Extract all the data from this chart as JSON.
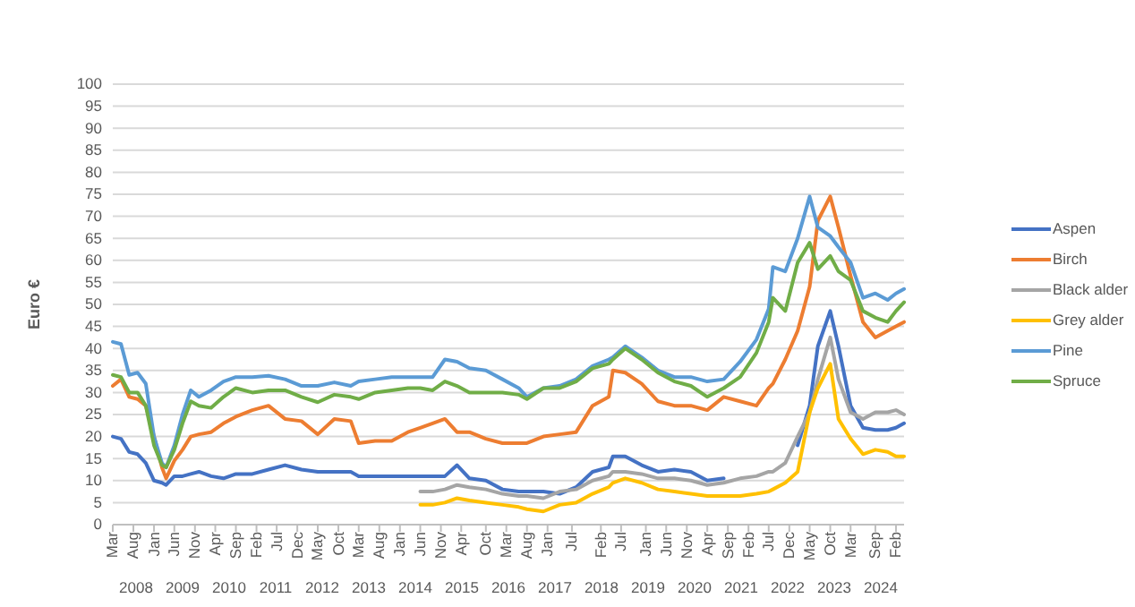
{
  "chart_data": {
    "type": "line",
    "ylabel": "Euro €",
    "x": [
      "2008-03",
      "2008-05",
      "2008-07",
      "2008-09",
      "2008-11",
      "2009-01",
      "2009-03",
      "2009-04",
      "2009-06",
      "2009-08",
      "2009-10",
      "2009-12",
      "2010-03",
      "2010-06",
      "2010-09",
      "2011-01",
      "2011-05",
      "2011-09",
      "2012-01",
      "2012-05",
      "2012-09",
      "2013-01",
      "2013-03",
      "2013-07",
      "2013-11",
      "2014-03",
      "2014-06",
      "2014-09",
      "2014-12",
      "2015-03",
      "2015-06",
      "2015-10",
      "2016-02",
      "2016-06",
      "2016-08",
      "2016-12",
      "2017-04",
      "2017-08",
      "2017-12",
      "2018-04",
      "2018-05",
      "2018-08",
      "2018-12",
      "2019-04",
      "2019-08",
      "2019-12",
      "2020-04",
      "2020-08",
      "2020-12",
      "2021-04",
      "2021-07",
      "2021-08",
      "2021-11",
      "2022-02",
      "2022-05",
      "2022-07",
      "2022-10",
      "2022-12",
      "2023-03",
      "2023-06",
      "2023-09",
      "2023-12",
      "2024-02",
      "2024-04"
    ],
    "series": [
      {
        "name": "Aspen",
        "color": "#4472c4",
        "values": [
          20,
          19.5,
          16.5,
          16,
          14,
          10,
          9.5,
          9,
          11,
          11,
          11.5,
          12,
          11,
          10.5,
          11.5,
          11.5,
          12.5,
          13.5,
          12.5,
          12,
          12,
          12,
          11,
          11,
          11,
          11,
          11,
          11,
          11,
          13.5,
          10.5,
          10,
          8,
          7.5,
          7.5,
          7.5,
          7,
          8.5,
          12,
          13,
          15.5,
          15.5,
          13.5,
          12,
          12.5,
          12,
          10,
          10.5,
          null,
          null,
          null,
          null,
          null,
          18,
          27,
          40.5,
          48.5,
          40.5,
          27,
          22,
          21.5,
          21.5,
          22,
          23
        ]
      },
      {
        "name": "Birch",
        "color": "#ed7d31",
        "values": [
          31.5,
          33,
          29,
          28.5,
          27,
          20,
          13,
          10.5,
          14.5,
          17,
          20,
          20.5,
          21,
          23,
          24.5,
          26,
          27,
          24,
          23.5,
          20.5,
          24,
          23.5,
          18.5,
          19,
          19,
          21,
          22,
          23,
          24,
          21,
          21,
          19.5,
          18.5,
          18.5,
          18.5,
          20,
          20.5,
          21,
          27,
          29,
          35,
          34.5,
          32,
          28,
          27,
          27,
          26,
          29,
          28,
          27,
          31,
          32,
          37.5,
          44,
          54,
          69,
          74.5,
          67.5,
          56.5,
          46,
          42.5,
          44,
          45,
          46
        ]
      },
      {
        "name": "Black alder",
        "color": "#a5a5a5",
        "values": [
          null,
          null,
          null,
          null,
          null,
          null,
          null,
          null,
          null,
          null,
          null,
          null,
          null,
          null,
          null,
          null,
          null,
          null,
          null,
          null,
          null,
          null,
          null,
          null,
          null,
          null,
          7.5,
          7.5,
          8,
          9,
          8.5,
          8,
          7,
          6.5,
          6.5,
          6,
          7.5,
          8,
          10,
          11,
          12,
          12,
          11.5,
          10.5,
          10.5,
          10,
          9,
          9.5,
          10.5,
          11,
          12,
          12,
          14,
          20,
          25.5,
          33,
          42.5,
          33,
          25.5,
          24,
          25.5,
          25.5,
          26,
          25
        ]
      },
      {
        "name": "Grey alder",
        "color": "#ffc000",
        "values": [
          null,
          null,
          null,
          null,
          null,
          null,
          null,
          null,
          null,
          null,
          null,
          null,
          null,
          null,
          null,
          null,
          null,
          null,
          null,
          null,
          null,
          null,
          null,
          null,
          null,
          null,
          4.5,
          4.5,
          5,
          6,
          5.5,
          5,
          4.5,
          4,
          3.5,
          3,
          4.5,
          5,
          7,
          8.5,
          9.5,
          10.5,
          9.5,
          8,
          7.5,
          7,
          6.5,
          6.5,
          6.5,
          7,
          7.5,
          8,
          9.5,
          12,
          25.5,
          31,
          36.5,
          24,
          19.5,
          16,
          17,
          16.5,
          15.5,
          15.5
        ]
      },
      {
        "name": "Pine",
        "color": "#5b9bd5",
        "values": [
          41.5,
          41,
          34,
          34.5,
          32,
          20,
          14,
          13,
          18,
          25,
          30.5,
          29,
          30.5,
          32.5,
          33.5,
          33.5,
          33.8,
          33,
          31.5,
          31.5,
          32.3,
          31.5,
          32.5,
          33,
          33.5,
          33.5,
          33.5,
          33.5,
          37.5,
          37,
          35.5,
          35,
          33,
          31,
          29,
          31,
          31.5,
          33,
          36,
          37.5,
          38,
          40.5,
          38,
          35,
          33.5,
          33.5,
          32.5,
          33,
          37,
          42,
          49,
          58.5,
          57.5,
          65,
          74.5,
          67.5,
          65.5,
          63,
          59.5,
          51.5,
          52.5,
          51,
          52.5,
          53.5
        ]
      },
      {
        "name": "Spruce",
        "color": "#70ad47",
        "values": [
          34,
          33.5,
          30,
          30,
          27,
          18,
          13.5,
          13,
          17,
          23,
          28,
          27,
          26.5,
          29,
          31,
          30,
          30.5,
          30.5,
          29,
          27.8,
          29.5,
          29,
          28.5,
          30,
          30.5,
          31,
          31,
          30.5,
          32.5,
          31.5,
          30,
          30,
          30,
          29.5,
          28.5,
          31,
          31,
          32.5,
          35.5,
          36.5,
          37.5,
          40,
          37.5,
          34.5,
          32.5,
          31.5,
          29,
          31,
          33.5,
          39,
          46,
          51.5,
          48.5,
          59.5,
          64,
          58,
          61,
          57.5,
          55.5,
          48.5,
          47,
          46,
          48.5,
          50.5
        ]
      }
    ],
    "xlim": [
      "2008-03",
      "2024-04"
    ],
    "xticks": [
      {
        "value": "2008-03",
        "label": "Mar"
      },
      {
        "value": "2008-08",
        "label": "Aug"
      },
      {
        "value": "2009-01",
        "label": "Jan"
      },
      {
        "value": "2009-06",
        "label": "Jun"
      },
      {
        "value": "2009-11",
        "label": "Nov"
      },
      {
        "value": "2010-04",
        "label": "Apr"
      },
      {
        "value": "2010-09",
        "label": "Sep"
      },
      {
        "value": "2011-02",
        "label": "Feb"
      },
      {
        "value": "2011-07",
        "label": "Jul"
      },
      {
        "value": "2011-12",
        "label": "Dec"
      },
      {
        "value": "2012-05",
        "label": "May"
      },
      {
        "value": "2012-10",
        "label": "Oct"
      },
      {
        "value": "2013-03",
        "label": "Mar"
      },
      {
        "value": "2013-08",
        "label": "Aug"
      },
      {
        "value": "2014-01",
        "label": "Jan"
      },
      {
        "value": "2014-06",
        "label": "Jun"
      },
      {
        "value": "2014-11",
        "label": "Nov"
      },
      {
        "value": "2015-04",
        "label": "Apr"
      },
      {
        "value": "2015-10",
        "label": "Oct"
      },
      {
        "value": "2016-03",
        "label": "Mar"
      },
      {
        "value": "2016-08",
        "label": "Aug"
      },
      {
        "value": "2017-01",
        "label": "Jan"
      },
      {
        "value": "2017-07",
        "label": "Jul"
      },
      {
        "value": "2018-02",
        "label": "Feb"
      },
      {
        "value": "2018-07",
        "label": "Jul"
      },
      {
        "value": "2019-01",
        "label": "Jan"
      },
      {
        "value": "2019-06",
        "label": "Jun"
      },
      {
        "value": "2019-11",
        "label": "Nov"
      },
      {
        "value": "2020-04",
        "label": "Apr"
      },
      {
        "value": "2020-09",
        "label": "Sep"
      },
      {
        "value": "2021-02",
        "label": "Feb"
      },
      {
        "value": "2021-07",
        "label": "Jul"
      },
      {
        "value": "2021-12",
        "label": "Dec"
      },
      {
        "value": "2022-05",
        "label": "May"
      },
      {
        "value": "2022-10",
        "label": "Oct"
      },
      {
        "value": "2023-03",
        "label": "Mar"
      },
      {
        "value": "2023-09",
        "label": "Sep"
      },
      {
        "value": "2024-02",
        "label": "Feb"
      }
    ],
    "ylim": [
      0,
      100
    ],
    "yticks": [
      0,
      5,
      10,
      15,
      20,
      25,
      30,
      35,
      40,
      45,
      50,
      55,
      60,
      65,
      70,
      75,
      80,
      85,
      90,
      95,
      100
    ],
    "grid": "y",
    "legend": "right",
    "marker": "none",
    "line_style": "solid",
    "annotations": [
      "2008",
      "2009",
      "2010",
      "2011",
      "2012",
      "2013",
      "2014",
      "2015",
      "2016",
      "2017",
      "2018",
      "2019",
      "2020",
      "2021",
      "2022",
      "2023",
      "2024"
    ]
  }
}
